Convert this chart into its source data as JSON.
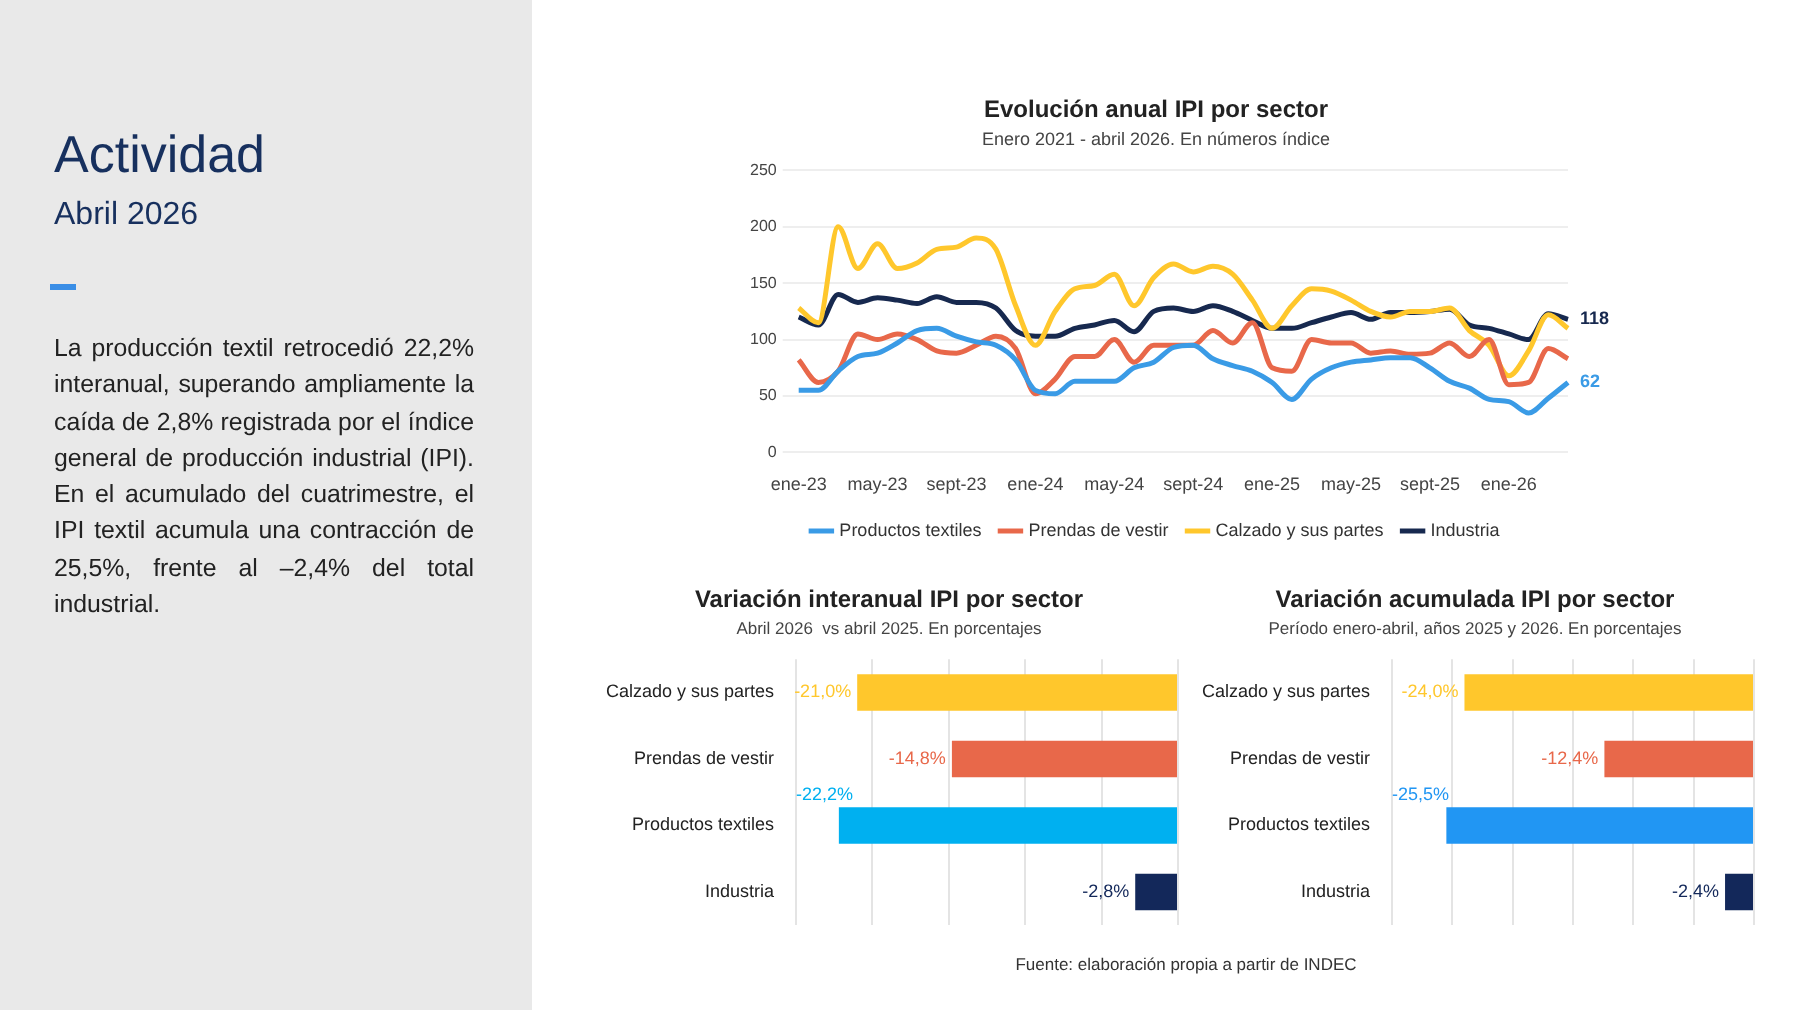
{
  "chart_data": [
    {
      "type": "other",
      "title": "Actividad",
      "subtitle": "Abril 2026",
      "annotations": [
        "La producción textil retrocedió 22,2% interanual, superando ampliamente la caída de 2,8% registrada por el índice general de producción industrial (IPI). En el acumulado del cuatrimestre, el IPI textil acumula una contracción de 25,5%, frente al –2,4% del total industrial."
      ]
    },
    {
      "type": "line",
      "title": "Evolución anual IPI por sector",
      "subtitle": "Enero 2021 - abril 2026. En números índice",
      "categories": [
        "ene-23",
        null,
        null,
        null,
        "may-23",
        null,
        null,
        null,
        "sept-23",
        null,
        null,
        null,
        "ene-24",
        null,
        null,
        null,
        "may-24",
        null,
        null,
        null,
        "sept-24",
        null,
        null,
        null,
        "ene-25",
        null,
        null,
        null,
        "may-25",
        null,
        null,
        null,
        "sept-25",
        null,
        null,
        null,
        "ene-26",
        null,
        null,
        null
      ],
      "series": [
        {
          "name": "Productos textiles",
          "color": "#3a9be6",
          "values": [
            55,
            55,
            72,
            85,
            88,
            97,
            108,
            110,
            103,
            98,
            95,
            82,
            55,
            52,
            63,
            63,
            63,
            75,
            80,
            93,
            95,
            83,
            77,
            72,
            62,
            47,
            65,
            75,
            80,
            82,
            84,
            84,
            75,
            63,
            57,
            47,
            45,
            35,
            48,
            62
          ],
          "value_labels": [
            null,
            null,
            null,
            null,
            null,
            null,
            null,
            null,
            null,
            null,
            null,
            null,
            null,
            null,
            null,
            null,
            null,
            null,
            null,
            null,
            null,
            null,
            null,
            null,
            null,
            null,
            null,
            null,
            null,
            null,
            null,
            null,
            null,
            null,
            null,
            null,
            null,
            null,
            null,
            "62"
          ]
        },
        {
          "name": "Prendas de vestir",
          "color": "#e8684a",
          "values": [
            82,
            62,
            72,
            105,
            100,
            105,
            100,
            90,
            88,
            95,
            103,
            92,
            52,
            65,
            85,
            85,
            100,
            80,
            95,
            95,
            95,
            108,
            97,
            115,
            75,
            72,
            100,
            97,
            97,
            88,
            90,
            87,
            88,
            97,
            85,
            100,
            60,
            62,
            92,
            83
          ]
        },
        {
          "name": "Calzado y sus partes",
          "color": "#ffc72c",
          "values": [
            128,
            115,
            200,
            163,
            185,
            163,
            168,
            180,
            182,
            190,
            180,
            130,
            95,
            125,
            145,
            148,
            158,
            130,
            155,
            167,
            160,
            165,
            158,
            135,
            110,
            130,
            145,
            143,
            135,
            125,
            120,
            125,
            125,
            128,
            108,
            95,
            68,
            90,
            122,
            110
          ]
        },
        {
          "name": "Industria",
          "color": "#17294f",
          "values": [
            120,
            113,
            140,
            133,
            137,
            135,
            132,
            138,
            133,
            133,
            128,
            108,
            103,
            103,
            110,
            113,
            117,
            107,
            125,
            128,
            125,
            130,
            125,
            117,
            110,
            110,
            115,
            120,
            124,
            118,
            124,
            124,
            125,
            127,
            113,
            110,
            105,
            100,
            123,
            118
          ],
          "value_labels": [
            null,
            null,
            null,
            null,
            null,
            null,
            null,
            null,
            null,
            null,
            null,
            null,
            null,
            null,
            null,
            null,
            null,
            null,
            null,
            null,
            null,
            null,
            null,
            null,
            null,
            null,
            null,
            null,
            null,
            null,
            null,
            null,
            null,
            null,
            null,
            null,
            null,
            null,
            null,
            "118"
          ]
        }
      ],
      "ylim": [
        0,
        250
      ],
      "yticks": [
        0,
        50,
        100,
        150,
        200,
        250
      ],
      "grid": "y",
      "legend": "bottom",
      "marker": "none"
    },
    {
      "type": "bar",
      "orientation": "horizontal",
      "title": "Variación interanual IPI por sector",
      "subtitle": "Abril 2026  vs abril 2025. En porcentajes",
      "categories": [
        "Calzado y sus partes",
        "Prendas de vestir",
        "Productos textiles",
        "Industria"
      ],
      "values": [
        -21.0,
        -14.8,
        -22.2,
        -2.8
      ],
      "colors": [
        "#ffc72c",
        "#e8684a",
        "#00b0f0",
        "#13285a"
      ],
      "value_labels": [
        "-21,0%",
        "-14,8%",
        "-22,2%",
        "-2,8%"
      ],
      "xlim": [
        -25,
        0
      ],
      "xticks": [
        {
          "value": -25,
          "label": null
        },
        {
          "value": -20,
          "label": null
        },
        {
          "value": -15,
          "label": null
        },
        {
          "value": -10,
          "label": null
        },
        {
          "value": -5,
          "label": null
        },
        {
          "value": 0,
          "label": null
        }
      ],
      "tick_labels": "y",
      "grid": "x"
    },
    {
      "type": "bar",
      "orientation": "horizontal",
      "title": "Variación acumulada IPI por sector",
      "subtitle": "Período enero-abril, años 2025 y 2026. En porcentajes",
      "categories": [
        "Calzado y sus partes",
        "Prendas de vestir",
        "Productos textiles",
        "Industria"
      ],
      "values": [
        -24.0,
        -12.4,
        -25.5,
        -2.4
      ],
      "colors": [
        "#ffc72c",
        "#e8684a",
        "#2196f3",
        "#13285a"
      ],
      "value_labels": [
        "-24,0%",
        "-12,4%",
        "-25,5%",
        "-2,4%"
      ],
      "xlim": [
        -30,
        0
      ],
      "xticks": [
        {
          "value": -30,
          "label": null
        },
        {
          "value": -25,
          "label": null
        },
        {
          "value": -20,
          "label": null
        },
        {
          "value": -15,
          "label": null
        },
        {
          "value": -10,
          "label": null
        },
        {
          "value": -5,
          "label": null
        },
        {
          "value": 0,
          "label": null
        }
      ],
      "tick_labels": "y",
      "grid": "x",
      "annotations": [
        "Fuente: elaboración propia a partir de INDEC"
      ]
    }
  ]
}
